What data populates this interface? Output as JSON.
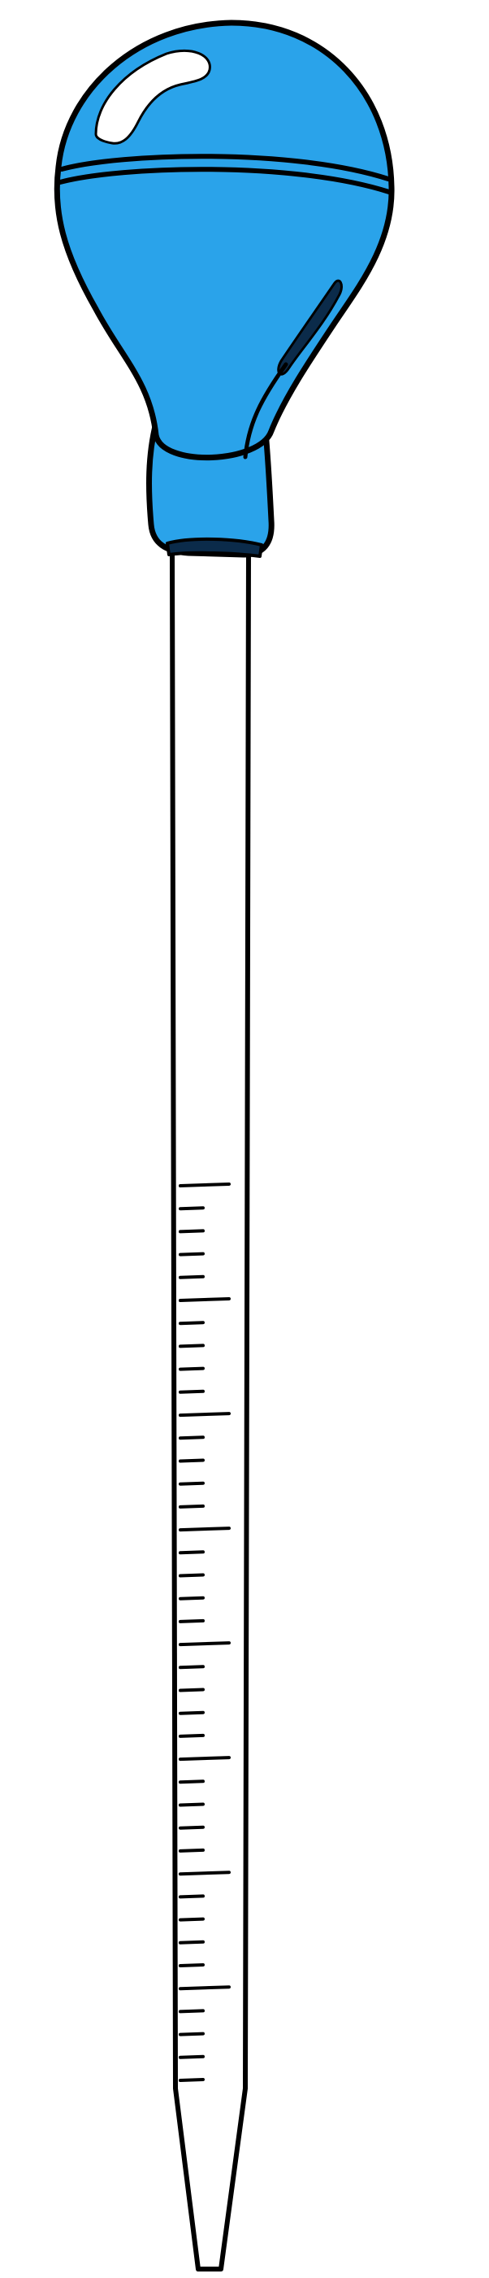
{
  "illustration": {
    "subject": "pipette",
    "bulb_color": "#2aa3ea",
    "bulb_highlight_color": "#ffffff",
    "bulb_dark_color": "#0b2b4a",
    "outline_color": "#000000",
    "tube_color": "#ffffff"
  }
}
